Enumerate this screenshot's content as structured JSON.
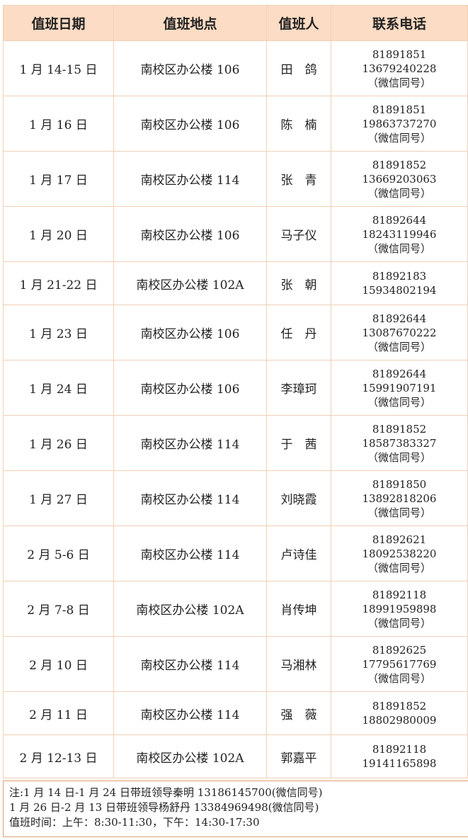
{
  "headers": [
    "值班日期",
    "值班地点",
    "值班人",
    "联系电话"
  ],
  "rows": [
    {
      "date": "1 月 14-15 日",
      "place": "南校区办公楼 106",
      "person": "田　鸽",
      "office": "81891851",
      "mobile": "13679240228",
      "wechat": "（微信同号）"
    },
    {
      "date": "1 月 16 日",
      "place": "南校区办公楼 106",
      "person": "陈　楠",
      "office": "81891851",
      "mobile": "19863737270",
      "wechat": "（微信同号）"
    },
    {
      "date": "1 月 17 日",
      "place": "南校区办公楼 114",
      "person": "张　青",
      "office": "81891852",
      "mobile": "13669203063",
      "wechat": "（微信同号）"
    },
    {
      "date": "1 月 20 日",
      "place": "南校区办公楼 106",
      "person": "马子仪",
      "office": "81892644",
      "mobile": "18243119946",
      "wechat": "（微信同号）"
    },
    {
      "date": "1 月 21-22 日",
      "place": "南校区办公楼 102A",
      "person": "张　朝",
      "office": "81892183",
      "mobile": "15934802194",
      "wechat": ""
    },
    {
      "date": "1 月 23 日",
      "place": "南校区办公楼 106",
      "person": "任　丹",
      "office": "81892644",
      "mobile": "13087670222",
      "wechat": "（微信同号）"
    },
    {
      "date": "1 月 24 日",
      "place": "南校区办公楼 106",
      "person": "李璋珂",
      "office": "81892644",
      "mobile": "15991907191",
      "wechat": "（微信同号）"
    },
    {
      "date": "1 月 26 日",
      "place": "南校区办公楼 114",
      "person": "于　茜",
      "office": "81891852",
      "mobile": "18587383327",
      "wechat": "（微信同号）"
    },
    {
      "date": "1 月 27 日",
      "place": "南校区办公楼 114",
      "person": "刘晓霞",
      "office": "81891850",
      "mobile": "13892818206",
      "wechat": "（微信同号）"
    },
    {
      "date": "2 月 5-6 日",
      "place": "南校区办公楼 114",
      "person": "卢诗佳",
      "office": "81892621",
      "mobile": "18092538220",
      "wechat": "（微信同号）"
    },
    {
      "date": "2 月 7-8 日",
      "place": "南校区办公楼 102A",
      "person": "肖传坤",
      "office": "81892118",
      "mobile": "18991959898",
      "wechat": "（微信同号）"
    },
    {
      "date": "2 月 10 日",
      "place": "南校区办公楼 114",
      "person": "马湘林",
      "office": "81892625",
      "mobile": "17795617769",
      "wechat": "（微信同号）"
    },
    {
      "date": "2 月 11 日",
      "place": "南校区办公楼 114",
      "person": "强　薇",
      "office": "81891852",
      "mobile": "18802980009",
      "wechat": ""
    },
    {
      "date": "2 月 12-13 日",
      "place": "南校区办公楼 102A",
      "person": "郭嘉平",
      "office": "81892118",
      "mobile": "19141165898",
      "wechat": ""
    }
  ],
  "notes": [
    "注:1 月 14 日-1 月 24 日带班领导秦明 13186145700(微信同号)",
    "1 月 26 日-2 月 13 日带班领导杨舒丹 13384969498(微信同号)",
    "值班时间：上午：8:30-11:30，下午：14:30-17:30"
  ]
}
